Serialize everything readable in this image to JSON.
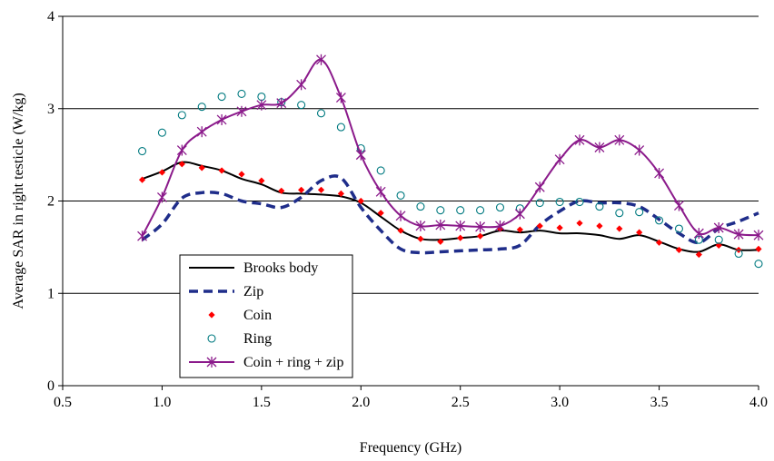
{
  "chart_data": {
    "type": "line",
    "title": "",
    "xlabel": "Frequency (GHz)",
    "ylabel": "Average SAR in right testicle (W/kg)",
    "xlim": [
      0.5,
      4.0
    ],
    "ylim": [
      0,
      4
    ],
    "xticks": [
      "0.5",
      "1.0",
      "1.5",
      "2.0",
      "2.5",
      "3.0",
      "3.5",
      "4.0"
    ],
    "yticks": [
      "0",
      "1",
      "2",
      "3",
      "4"
    ],
    "grid": "horizontal",
    "legend_position": "bottom-left",
    "series": [
      {
        "name": "Brooks body",
        "style": "solid-line",
        "color": "#000000",
        "x": [
          0.9,
          1.0,
          1.1,
          1.2,
          1.3,
          1.4,
          1.5,
          1.6,
          1.7,
          1.8,
          1.9,
          2.0,
          2.1,
          2.2,
          2.3,
          2.4,
          2.5,
          2.6,
          2.7,
          2.8,
          2.9,
          3.0,
          3.1,
          3.2,
          3.3,
          3.4,
          3.5,
          3.6,
          3.7,
          3.8,
          3.9,
          4.0
        ],
        "y": [
          2.24,
          2.32,
          2.42,
          2.38,
          2.33,
          2.24,
          2.18,
          2.09,
          2.08,
          2.07,
          2.05,
          1.98,
          1.83,
          1.68,
          1.59,
          1.58,
          1.6,
          1.62,
          1.68,
          1.66,
          1.68,
          1.65,
          1.65,
          1.63,
          1.59,
          1.63,
          1.56,
          1.48,
          1.45,
          1.53,
          1.47,
          1.47
        ]
      },
      {
        "name": "Zip",
        "style": "dashed-line",
        "color": "#1f2d8a",
        "x": [
          0.9,
          1.0,
          1.1,
          1.2,
          1.3,
          1.4,
          1.5,
          1.6,
          1.7,
          1.8,
          1.9,
          2.0,
          2.1,
          2.2,
          2.3,
          2.4,
          2.5,
          2.6,
          2.7,
          2.8,
          2.9,
          3.0,
          3.1,
          3.2,
          3.3,
          3.4,
          3.5,
          3.6,
          3.7,
          3.8,
          3.9,
          4.0
        ],
        "y": [
          1.58,
          1.75,
          2.03,
          2.09,
          2.08,
          2.0,
          1.97,
          1.93,
          2.04,
          2.22,
          2.25,
          1.93,
          1.68,
          1.48,
          1.44,
          1.45,
          1.46,
          1.47,
          1.48,
          1.52,
          1.74,
          1.89,
          2.0,
          1.98,
          1.98,
          1.94,
          1.8,
          1.65,
          1.55,
          1.7,
          1.78,
          1.87
        ]
      },
      {
        "name": "Coin",
        "style": "diamond-markers",
        "color": "#ff0000",
        "x": [
          0.9,
          1.0,
          1.1,
          1.2,
          1.3,
          1.4,
          1.5,
          1.6,
          1.7,
          1.8,
          1.9,
          2.0,
          2.1,
          2.2,
          2.3,
          2.4,
          2.5,
          2.6,
          2.7,
          2.8,
          2.9,
          3.0,
          3.1,
          3.2,
          3.3,
          3.4,
          3.5,
          3.6,
          3.7,
          3.8,
          3.9,
          4.0
        ],
        "y": [
          2.23,
          2.31,
          2.4,
          2.36,
          2.33,
          2.29,
          2.22,
          2.11,
          2.12,
          2.12,
          2.08,
          2.0,
          1.87,
          1.68,
          1.59,
          1.56,
          1.6,
          1.62,
          1.7,
          1.69,
          1.73,
          1.71,
          1.76,
          1.73,
          1.7,
          1.66,
          1.55,
          1.47,
          1.42,
          1.52,
          1.47,
          1.48
        ]
      },
      {
        "name": "Ring",
        "style": "open-circle-markers",
        "color": "#007a80",
        "x": [
          0.9,
          1.0,
          1.1,
          1.2,
          1.3,
          1.4,
          1.5,
          1.6,
          1.7,
          1.8,
          1.9,
          2.0,
          2.1,
          2.2,
          2.3,
          2.4,
          2.5,
          2.6,
          2.7,
          2.8,
          2.9,
          3.0,
          3.1,
          3.2,
          3.3,
          3.4,
          3.5,
          3.6,
          3.7,
          3.8,
          3.9,
          4.0
        ],
        "y": [
          2.54,
          2.74,
          2.93,
          3.02,
          3.13,
          3.16,
          3.13,
          3.07,
          3.04,
          2.95,
          2.8,
          2.57,
          2.33,
          2.06,
          1.94,
          1.9,
          1.9,
          1.9,
          1.93,
          1.92,
          1.98,
          1.99,
          1.99,
          1.94,
          1.87,
          1.88,
          1.79,
          1.7,
          1.58,
          1.58,
          1.43,
          1.32
        ]
      },
      {
        "name": "Coin + ring + zip",
        "style": "line-with-star-markers",
        "color": "#8b1a8b",
        "x": [
          0.9,
          1.0,
          1.1,
          1.2,
          1.3,
          1.4,
          1.5,
          1.6,
          1.7,
          1.8,
          1.9,
          2.0,
          2.1,
          2.2,
          2.3,
          2.4,
          2.5,
          2.6,
          2.7,
          2.8,
          2.9,
          3.0,
          3.1,
          3.2,
          3.3,
          3.4,
          3.5,
          3.6,
          3.7,
          3.8,
          3.9,
          4.0
        ],
        "y": [
          1.62,
          2.04,
          2.55,
          2.75,
          2.88,
          2.97,
          3.04,
          3.06,
          3.26,
          3.53,
          3.12,
          2.5,
          2.1,
          1.84,
          1.73,
          1.74,
          1.73,
          1.72,
          1.73,
          1.86,
          2.15,
          2.45,
          2.66,
          2.58,
          2.66,
          2.55,
          2.3,
          1.95,
          1.65,
          1.71,
          1.64,
          1.63
        ]
      }
    ]
  }
}
